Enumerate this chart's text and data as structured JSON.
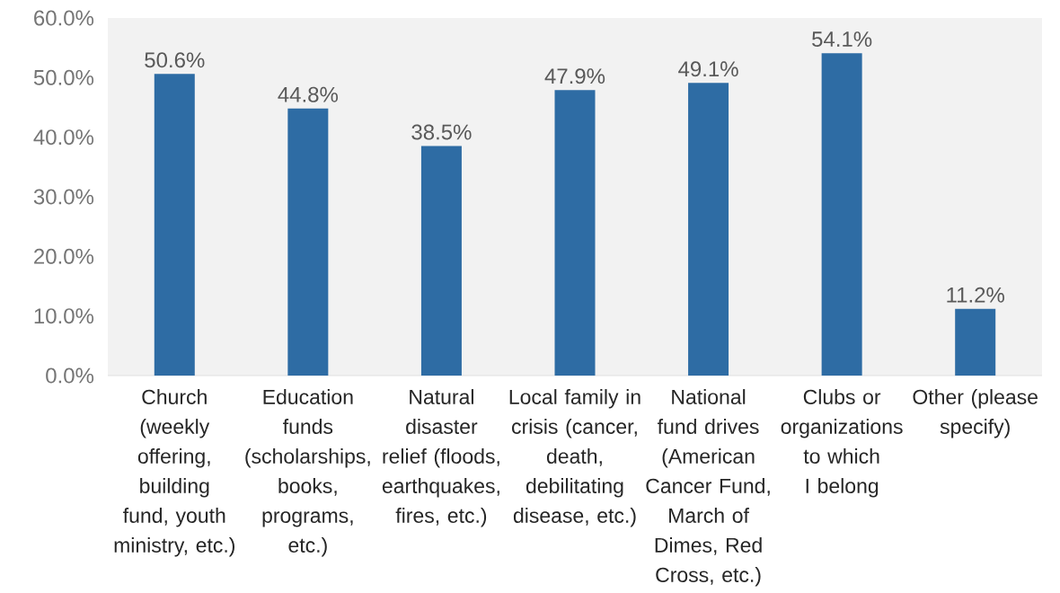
{
  "chart_data": {
    "type": "bar",
    "categories": [
      "Church (weekly offering, building fund, youth ministry, etc.)",
      "Education funds (scholarships, books, programs, etc.)",
      "Natural disaster relief (floods, earthquakes, fires, etc.)",
      "Local family in crisis (cancer, death, debilitating disease, etc.)",
      "National fund drives (American Cancer Fund, March of Dimes, Red Cross, etc.)",
      "Clubs or organizations to which I belong",
      "Other (please specify)"
    ],
    "values": [
      50.6,
      44.8,
      38.5,
      47.9,
      49.1,
      54.1,
      11.2
    ],
    "value_labels": [
      "50.6%",
      "44.8%",
      "38.5%",
      "47.9%",
      "49.1%",
      "54.1%",
      "11.2%"
    ],
    "color": "#2e6ca4",
    "ylim": [
      0,
      60
    ],
    "yticks": [
      {
        "value": 0,
        "label": "0.0%"
      },
      {
        "value": 10,
        "label": "10.0%"
      },
      {
        "value": 20,
        "label": "20.0%"
      },
      {
        "value": 30,
        "label": "30.0%"
      },
      {
        "value": 40,
        "label": "40.0%"
      },
      {
        "value": 50,
        "label": "50.0%"
      },
      {
        "value": 60,
        "label": "60.0%"
      }
    ]
  }
}
